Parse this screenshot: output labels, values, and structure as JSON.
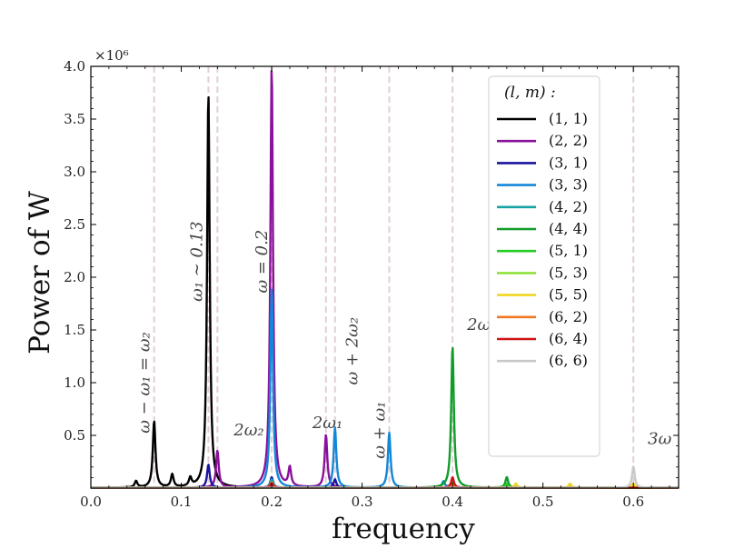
{
  "chart_data": {
    "type": "line",
    "title": "",
    "xlabel": "frequency",
    "ylabel": "Power of W",
    "y_exponent": "×10⁶",
    "xlim": [
      0.0,
      0.65
    ],
    "ylim": [
      0.0,
      4.0
    ],
    "x_ticks": [
      0.0,
      0.1,
      0.2,
      0.3,
      0.4,
      0.5,
      0.6
    ],
    "x_tick_labels": [
      "0.0",
      "0.1",
      "0.2",
      "0.3",
      "0.4",
      "0.5",
      "0.6"
    ],
    "y_ticks": [
      0.5,
      1.0,
      1.5,
      2.0,
      2.5,
      3.0,
      3.5,
      4.0
    ],
    "y_tick_labels": [
      "0.5",
      "1.0",
      "1.5",
      "2.0",
      "2.5",
      "3.0",
      "3.5",
      "4.0"
    ],
    "legend_title": "(l, m) :",
    "legend_position": "top-right",
    "reference_lines": [
      0.07,
      0.13,
      0.14,
      0.2,
      0.26,
      0.27,
      0.33,
      0.4,
      0.6
    ],
    "reference_line_color": "#e2cfd3",
    "annotations": [
      {
        "text": "ω − ω₁ = ω₂",
        "x": 0.065,
        "y": 1.0,
        "rotation": -90
      },
      {
        "text": "ω₁ ∼ 0.13",
        "x": 0.123,
        "y": 2.15,
        "rotation": -90
      },
      {
        "text": "2ω₂",
        "x": 0.158,
        "y": 0.5,
        "rotation": 0
      },
      {
        "text": "ω = 0.2",
        "x": 0.195,
        "y": 2.15,
        "rotation": -90
      },
      {
        "text": "2ω₁",
        "x": 0.245,
        "y": 0.57,
        "rotation": 0
      },
      {
        "text": "ω + 2ω₂",
        "x": 0.295,
        "y": 1.3,
        "rotation": -90
      },
      {
        "text": "ω + ω₁",
        "x": 0.325,
        "y": 0.55,
        "rotation": -90
      },
      {
        "text": "2ω",
        "x": 0.416,
        "y": 1.5,
        "rotation": 0
      },
      {
        "text": "3ω",
        "x": 0.616,
        "y": 0.42,
        "rotation": 0
      }
    ],
    "series": [
      {
        "name": "(1, 1)",
        "color": "#000000",
        "peaks": [
          [
            0.05,
            0.06
          ],
          [
            0.07,
            0.63
          ],
          [
            0.09,
            0.12
          ],
          [
            0.11,
            0.08
          ],
          [
            0.13,
            3.75
          ]
        ]
      },
      {
        "name": "(2, 2)",
        "color": "#8a119b",
        "peaks": [
          [
            0.14,
            0.35
          ],
          [
            0.2,
            4.0
          ],
          [
            0.22,
            0.18
          ],
          [
            0.26,
            0.5
          ]
        ]
      },
      {
        "name": "(3, 1)",
        "color": "#1a139e",
        "peaks": [
          [
            0.13,
            0.22
          ],
          [
            0.2,
            0.1
          ],
          [
            0.27,
            0.08
          ]
        ]
      },
      {
        "name": "(3, 3)",
        "color": "#1387d8",
        "peaks": [
          [
            0.2,
            1.9
          ],
          [
            0.27,
            0.57
          ],
          [
            0.33,
            0.52
          ],
          [
            0.39,
            0.06
          ],
          [
            0.4,
            0.08
          ]
        ]
      },
      {
        "name": "(4, 2)",
        "color": "#17a3a3",
        "peaks": [
          [
            0.2,
            0.08
          ],
          [
            0.4,
            0.05
          ]
        ]
      },
      {
        "name": "(4, 4)",
        "color": "#119c2a",
        "peaks": [
          [
            0.4,
            1.34
          ],
          [
            0.46,
            0.1
          ]
        ]
      },
      {
        "name": "(5, 1)",
        "color": "#22cc22",
        "peaks": [
          [
            0.4,
            0.05
          ],
          [
            0.46,
            0.04
          ]
        ]
      },
      {
        "name": "(5, 3)",
        "color": "#8ee23b",
        "peaks": [
          [
            0.47,
            0.03
          ],
          [
            0.53,
            0.02
          ]
        ]
      },
      {
        "name": "(5, 5)",
        "color": "#f1d722",
        "peaks": [
          [
            0.47,
            0.04
          ],
          [
            0.53,
            0.04
          ],
          [
            0.6,
            0.04
          ]
        ]
      },
      {
        "name": "(6, 2)",
        "color": "#f07820",
        "peaks": [
          [
            0.2,
            0.05
          ],
          [
            0.4,
            0.03
          ]
        ]
      },
      {
        "name": "(6, 4)",
        "color": "#d01414",
        "peaks": [
          [
            0.4,
            0.1
          ],
          [
            0.2,
            0.04
          ]
        ]
      },
      {
        "name": "(6, 6)",
        "color": "#c8c8c8",
        "peaks": [
          [
            0.6,
            0.2
          ]
        ]
      }
    ]
  }
}
